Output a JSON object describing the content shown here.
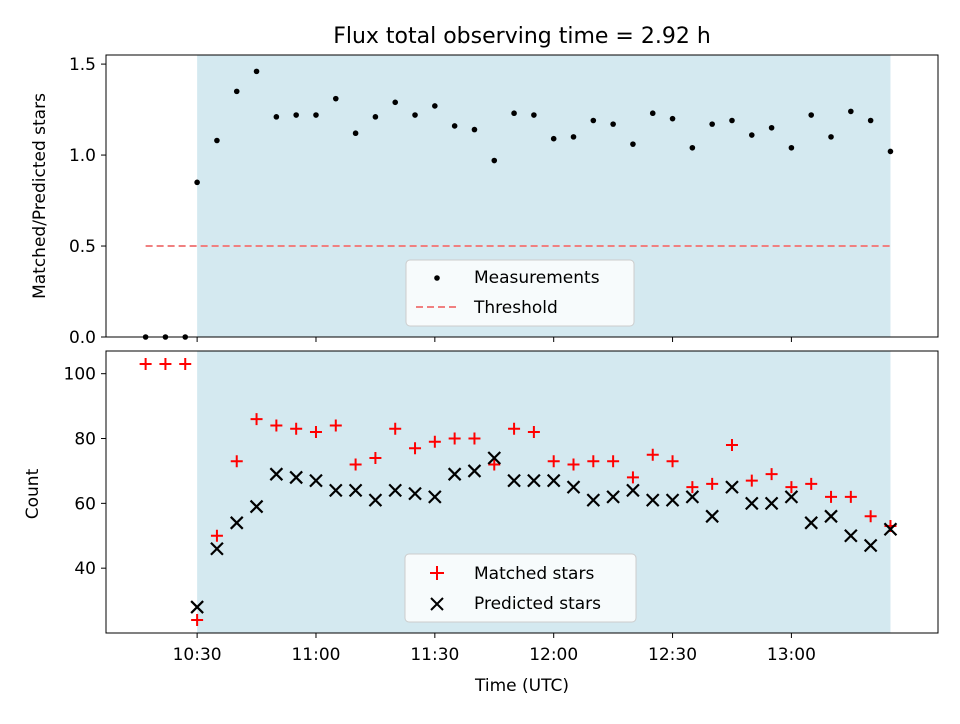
{
  "chart_data": [
    {
      "type": "scatter",
      "title": "Flux total observing time = 2.92 h",
      "xlabel": "",
      "ylabel": "Matched/Predicted stars",
      "x_units": "minutes after midnight UTC",
      "xlim": [
        607,
        817
      ],
      "ylim": [
        0,
        1.55
      ],
      "yticks": [
        "0.0",
        "0.5",
        "1.0",
        "1.5"
      ],
      "shaded_span": {
        "x_start": 630,
        "x_end": 805,
        "color": "#d4e9f0"
      },
      "grid": false,
      "legend": {
        "placement": "lower-center",
        "entries": [
          "Measurements",
          "Threshold"
        ]
      },
      "series": [
        {
          "name": "Measurements",
          "marker": "dot",
          "color": "#000000",
          "x": [
            617,
            622,
            627,
            630,
            635,
            640,
            645,
            650,
            655,
            660,
            665,
            670,
            675,
            680,
            685,
            690,
            695,
            700,
            705,
            710,
            715,
            720,
            725,
            730,
            735,
            740,
            745,
            750,
            755,
            760,
            765,
            770,
            775,
            780,
            785,
            790,
            795,
            800,
            805
          ],
          "y": [
            0.0,
            0.0,
            0.0,
            0.85,
            1.08,
            1.35,
            1.46,
            1.21,
            1.22,
            1.22,
            1.31,
            1.12,
            1.21,
            1.29,
            1.22,
            1.27,
            1.16,
            1.14,
            0.97,
            1.23,
            1.22,
            1.09,
            1.1,
            1.19,
            1.17,
            1.06,
            1.23,
            1.2,
            1.04,
            1.17,
            1.19,
            1.11,
            1.15,
            1.04,
            1.22,
            1.1,
            1.24,
            1.19,
            1.02
          ]
        },
        {
          "name": "Threshold",
          "style": "dashed",
          "color": "#f08080",
          "x": [
            617,
            805
          ],
          "y": [
            0.5,
            0.5
          ]
        }
      ]
    },
    {
      "type": "scatter",
      "title": "",
      "xlabel": "Time (UTC)",
      "ylabel": "Count",
      "x_units": "minutes after midnight UTC",
      "xlim": [
        607,
        817
      ],
      "ylim": [
        20,
        107
      ],
      "yticks": [
        "40",
        "60",
        "80",
        "100"
      ],
      "xticks": [
        "10:30",
        "11:00",
        "11:30",
        "12:00",
        "12:30",
        "13:00"
      ],
      "shaded_span": {
        "x_start": 630,
        "x_end": 805,
        "color": "#d4e9f0"
      },
      "grid": false,
      "legend": {
        "placement": "lower-center",
        "entries": [
          "Matched stars",
          "Predicted stars"
        ]
      },
      "series": [
        {
          "name": "Matched stars",
          "marker": "plus",
          "color": "#ff0000",
          "x": [
            617,
            622,
            627,
            630,
            635,
            640,
            645,
            650,
            655,
            660,
            665,
            670,
            675,
            680,
            685,
            690,
            695,
            700,
            705,
            710,
            715,
            720,
            725,
            730,
            735,
            740,
            745,
            750,
            755,
            760,
            765,
            770,
            775,
            780,
            785,
            790,
            795,
            800,
            805
          ],
          "y": [
            103,
            103,
            103,
            24,
            50,
            73,
            86,
            84,
            83,
            82,
            84,
            72,
            74,
            83,
            77,
            79,
            80,
            80,
            72,
            83,
            82,
            73,
            72,
            73,
            73,
            68,
            75,
            73,
            65,
            66,
            78,
            67,
            69,
            65,
            66,
            62,
            62,
            56,
            53
          ]
        },
        {
          "name": "Predicted stars",
          "marker": "x",
          "color": "#000000",
          "x": [
            630,
            635,
            640,
            645,
            650,
            655,
            660,
            665,
            670,
            675,
            680,
            685,
            690,
            695,
            700,
            705,
            710,
            715,
            720,
            725,
            730,
            735,
            740,
            745,
            750,
            755,
            760,
            765,
            770,
            775,
            780,
            785,
            790,
            795,
            800,
            805
          ],
          "y": [
            28,
            46,
            54,
            59,
            69,
            68,
            67,
            64,
            64,
            61,
            64,
            63,
            62,
            69,
            70,
            74,
            67,
            67,
            67,
            65,
            61,
            62,
            64,
            61,
            61,
            62,
            56,
            65,
            60,
            60,
            62,
            54,
            56,
            50,
            47,
            52
          ]
        }
      ]
    }
  ]
}
